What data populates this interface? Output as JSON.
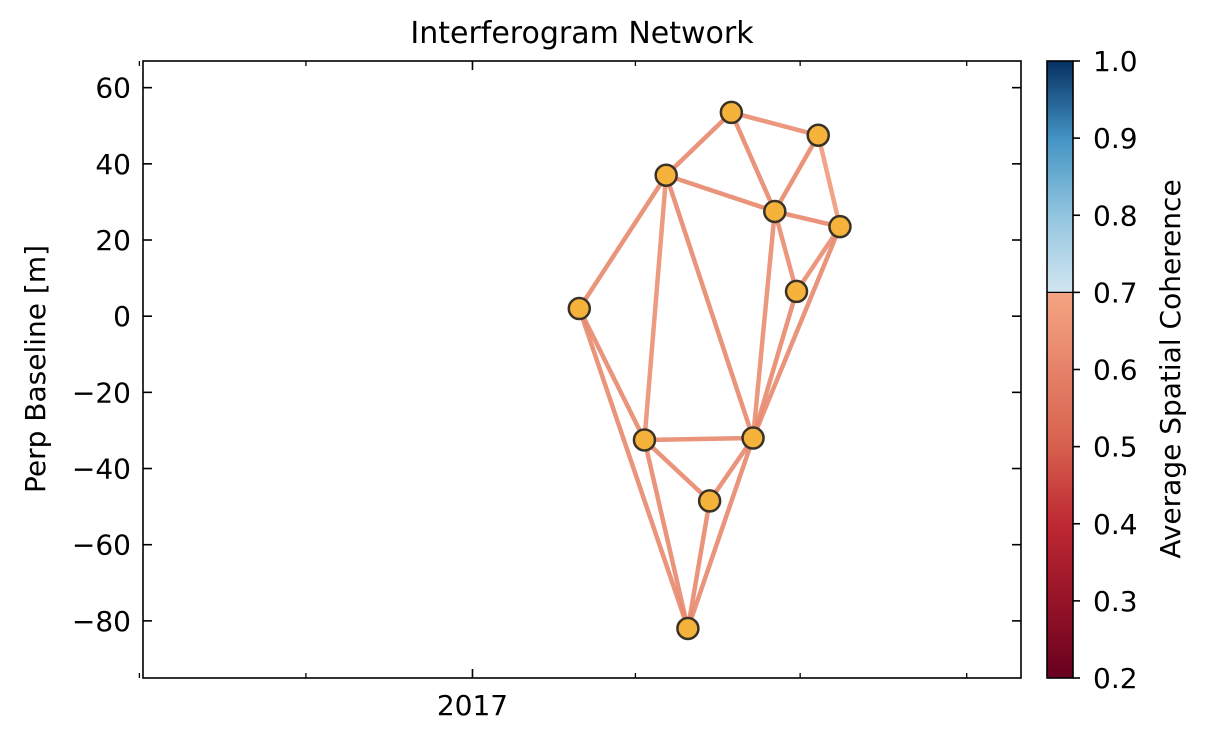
{
  "chart_data": {
    "type": "network",
    "title": "Interferogram Network",
    "xlabel": "",
    "ylabel": "Perp Baseline [m]",
    "x_tick_labels": [
      "2017"
    ],
    "xlim_days_from_2017": [
      -182,
      303
    ],
    "ylim": [
      -95,
      67
    ],
    "y_ticks": [
      60,
      40,
      20,
      0,
      -20,
      -40,
      -60,
      -80
    ],
    "y_tick_labels": [
      "60",
      "40",
      "20",
      "0",
      "−20",
      "−40",
      "−60",
      "−80"
    ],
    "colorbar": {
      "label": "Average Spatial Coherence",
      "range": [
        0.2,
        1.0
      ],
      "ticks": [
        1.0,
        0.9,
        0.8,
        0.7,
        0.6,
        0.5,
        0.4,
        0.3,
        0.2
      ],
      "tick_labels": [
        "1.0",
        "0.9",
        "0.8",
        "0.7",
        "0.6",
        "0.5",
        "0.4",
        "0.3",
        "0.2"
      ],
      "colormap": "RdBu (truncated)"
    },
    "colors": {
      "node_fill": "#f6b33c",
      "node_edge": "#3a3226",
      "edge_color": "#e38a74"
    },
    "nodes": [
      {
        "id": "A",
        "date": "2017-03-01",
        "bperp": 2
      },
      {
        "id": "B",
        "date": "2017-04-06",
        "bperp": -32.5
      },
      {
        "id": "C",
        "date": "2017-04-18",
        "bperp": 37
      },
      {
        "id": "D",
        "date": "2017-04-30",
        "bperp": -82
      },
      {
        "id": "E",
        "date": "2017-05-12",
        "bperp": -48.5
      },
      {
        "id": "F",
        "date": "2017-05-24",
        "bperp": 53.5
      },
      {
        "id": "G",
        "date": "2017-06-05",
        "bperp": -32
      },
      {
        "id": "H",
        "date": "2017-06-17",
        "bperp": 27.5
      },
      {
        "id": "I",
        "date": "2017-06-29",
        "bperp": 6.5
      },
      {
        "id": "J",
        "date": "2017-07-11",
        "bperp": 47.5
      },
      {
        "id": "K",
        "date": "2017-07-23",
        "bperp": 23.5
      }
    ],
    "edges": [
      {
        "from": "A",
        "to": "C",
        "coherence": 0.62
      },
      {
        "from": "A",
        "to": "B",
        "coherence": 0.62
      },
      {
        "from": "A",
        "to": "D",
        "coherence": 0.62
      },
      {
        "from": "C",
        "to": "F",
        "coherence": 0.62
      },
      {
        "from": "C",
        "to": "H",
        "coherence": 0.62
      },
      {
        "from": "C",
        "to": "B",
        "coherence": 0.64
      },
      {
        "from": "C",
        "to": "G",
        "coherence": 0.62
      },
      {
        "from": "F",
        "to": "J",
        "coherence": 0.63
      },
      {
        "from": "F",
        "to": "H",
        "coherence": 0.62
      },
      {
        "from": "J",
        "to": "H",
        "coherence": 0.62
      },
      {
        "from": "J",
        "to": "K",
        "coherence": 0.67
      },
      {
        "from": "H",
        "to": "K",
        "coherence": 0.62
      },
      {
        "from": "H",
        "to": "G",
        "coherence": 0.63
      },
      {
        "from": "H",
        "to": "I",
        "coherence": 0.63
      },
      {
        "from": "I",
        "to": "G",
        "coherence": 0.62
      },
      {
        "from": "I",
        "to": "K",
        "coherence": 0.63
      },
      {
        "from": "K",
        "to": "G",
        "coherence": 0.62
      },
      {
        "from": "B",
        "to": "G",
        "coherence": 0.62
      },
      {
        "from": "B",
        "to": "E",
        "coherence": 0.62
      },
      {
        "from": "B",
        "to": "D",
        "coherence": 0.62
      },
      {
        "from": "G",
        "to": "E",
        "coherence": 0.62
      },
      {
        "from": "G",
        "to": "D",
        "coherence": 0.62
      },
      {
        "from": "E",
        "to": "D",
        "coherence": 0.62
      }
    ]
  }
}
